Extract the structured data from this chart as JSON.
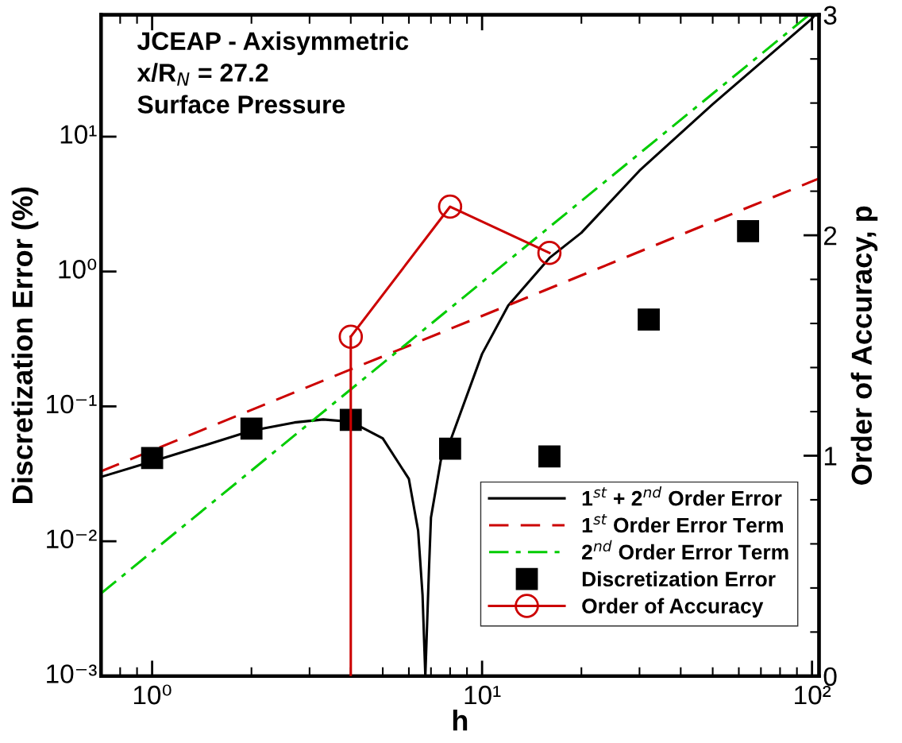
{
  "chart_data": {
    "type": "line",
    "xlabel": "h",
    "ylabel": "Discretization Error (%)",
    "y2label": "Order of Accuracy, p",
    "annotations": [
      "JCEAP - Axisymmetric",
      "x/R$_{N}$ = 27.2",
      "Surface Pressure"
    ],
    "log": "xy",
    "grid": false,
    "legend": "bottom right",
    "xlim": [
      0.7,
      105
    ],
    "xticks": [
      {
        "value": 1,
        "label": "10⁰"
      },
      {
        "value": 10,
        "label": "10¹"
      },
      {
        "value": 100,
        "label": "10²"
      }
    ],
    "ylim": [
      0.001,
      80
    ],
    "yticks": [
      {
        "value": 0.001,
        "label": "10⁻³"
      },
      {
        "value": 0.01,
        "label": "10⁻²"
      },
      {
        "value": 0.1,
        "label": "10⁻¹"
      },
      {
        "value": 1,
        "label": "10⁰"
      },
      {
        "value": 10,
        "label": "10¹"
      }
    ],
    "y2lim": [
      0,
      3
    ],
    "y2ticks": [
      0,
      1,
      2,
      3
    ],
    "series": [
      {
        "name": "1$^{st}$ + 2$^{nd}$ Order Error",
        "type": "line",
        "color": "#000000",
        "line_style": "solid",
        "marker": "none",
        "x": [
          0.7,
          1,
          1.5,
          2,
          2.7,
          3.3,
          4,
          5,
          6,
          6.4,
          6.6,
          6.73,
          6.9,
          7,
          7.5,
          8,
          10,
          12,
          16,
          20,
          30,
          50,
          100,
          102
        ],
        "values": [
          0.03,
          0.039,
          0.053,
          0.066,
          0.076,
          0.08,
          0.077,
          0.058,
          0.029,
          0.012,
          0.004,
          0.001,
          0.006,
          0.015,
          0.04,
          0.055,
          0.245,
          0.56,
          1.26,
          1.94,
          5.6,
          17.4,
          75,
          80
        ]
      },
      {
        "name": "1$^{st}$ Order Error Term",
        "type": "line",
        "color": "#cc0000",
        "line_style": "dashed",
        "marker": "none",
        "x": [
          0.7,
          105
        ],
        "values": [
          0.033,
          4.9
        ]
      },
      {
        "name": "2$^{nd}$ Order Error Term",
        "type": "line",
        "color": "#00cc00",
        "line_style": "dashdot",
        "marker": "none",
        "x": [
          0.7,
          98
        ],
        "values": [
          0.0041,
          80
        ]
      },
      {
        "name": "Discretization Error",
        "type": "scatter",
        "color": "#000000",
        "marker": "square",
        "x": [
          1,
          2,
          4,
          8,
          16,
          32,
          64
        ],
        "values": [
          0.0414,
          0.0684,
          0.0794,
          0.0486,
          0.0425,
          0.44,
          1.99
        ]
      },
      {
        "name": "Order of Accuracy",
        "type": "line",
        "axis": "y2",
        "color": "#cc0000",
        "line_style": "solid",
        "marker": "circle",
        "x": [
          4,
          8,
          16
        ],
        "values": [
          1.54,
          2.13,
          1.92
        ]
      },
      {
        "type": "line",
        "axis": "y2",
        "color": "#cc0000",
        "line_style": "solid",
        "marker": "none",
        "x": [
          4,
          4
        ],
        "values": [
          0,
          1.54
        ]
      }
    ]
  }
}
